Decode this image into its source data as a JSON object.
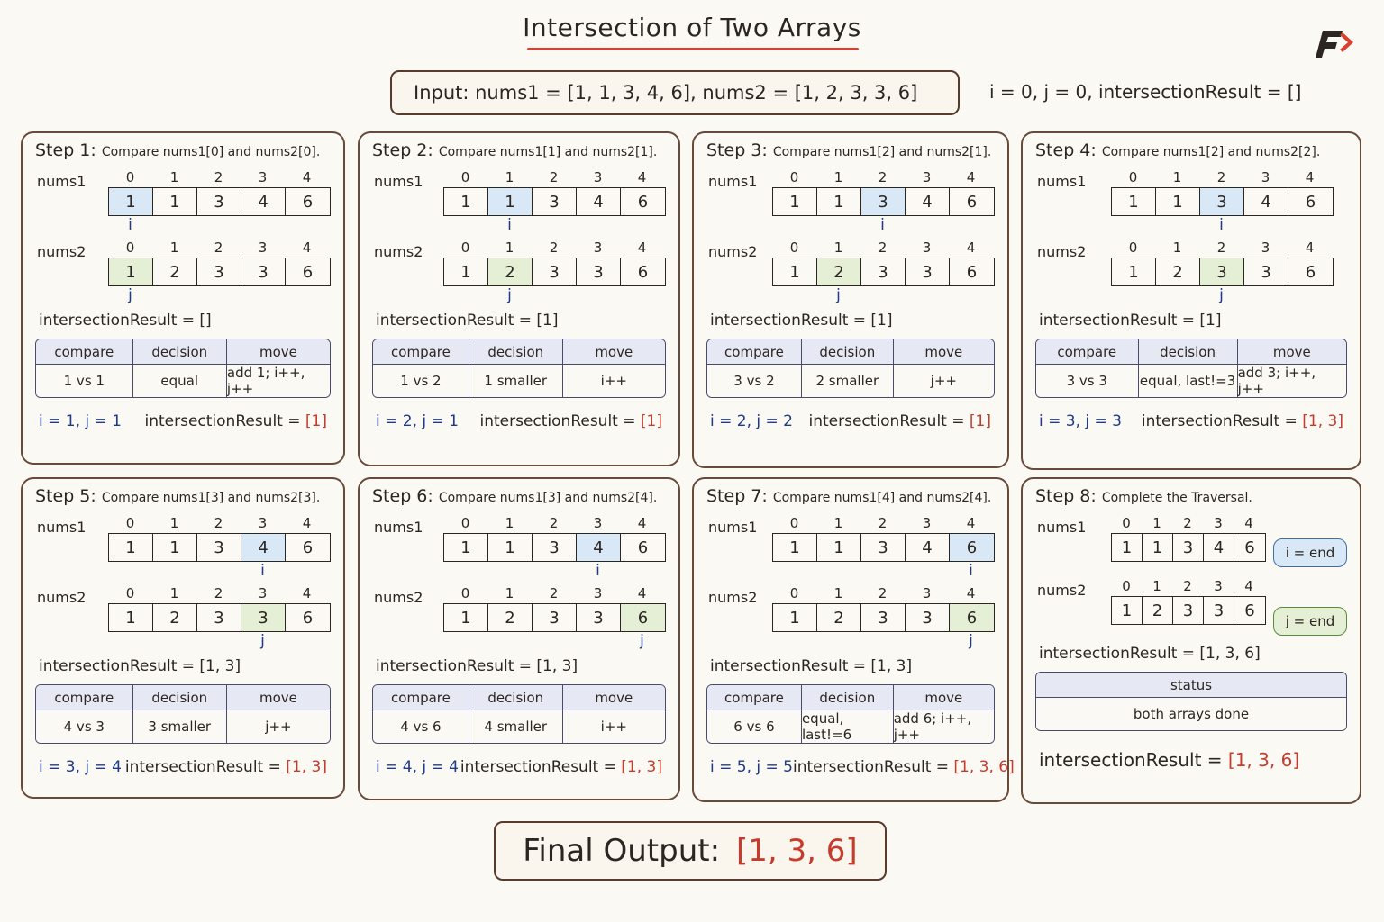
{
  "title": "Intersection of Two Arrays",
  "input_text": "Input: nums1 = [1, 1, 3, 4, 6], nums2 = [1, 2, 3, 3, 6]",
  "init_text": "i = 0, j = 0, intersectionResult = []",
  "indices": [
    "0",
    "1",
    "2",
    "3",
    "4"
  ],
  "nums1": [
    "1",
    "1",
    "3",
    "4",
    "6"
  ],
  "nums2": [
    "1",
    "2",
    "3",
    "3",
    "6"
  ],
  "labels": {
    "nums1": "nums1",
    "nums2": "nums2",
    "i": "i",
    "j": "j",
    "compare": "compare",
    "decision": "decision",
    "move": "move",
    "status": "status",
    "result_prefix": "intersectionResult = "
  },
  "steps": [
    {
      "title": "Step 1:",
      "subtitle": "Compare nums1[0] and nums2[0].",
      "i": 0,
      "j": 0,
      "result_before": "[]",
      "compare": "1 vs 1",
      "decision": "equal",
      "move": "add 1; i++, j++",
      "ij_after": "i = 1, j = 1",
      "result_after": "[1]"
    },
    {
      "title": "Step 2:",
      "subtitle": "Compare nums1[1] and nums2[1].",
      "i": 1,
      "j": 1,
      "result_before": "[1]",
      "compare": "1 vs 2",
      "decision": "1 smaller",
      "move": "i++",
      "ij_after": "i = 2, j = 1",
      "result_after": "[1]"
    },
    {
      "title": "Step 3:",
      "subtitle": "Compare nums1[2] and nums2[1].",
      "i": 2,
      "j": 1,
      "result_before": "[1]",
      "compare": "3 vs 2",
      "decision": "2 smaller",
      "move": "j++",
      "ij_after": "i = 2, j = 2",
      "result_after": "[1]"
    },
    {
      "title": "Step 4:",
      "subtitle": "Compare nums1[2] and nums2[2].",
      "i": 2,
      "j": 2,
      "result_before": "[1]",
      "compare": "3 vs 3",
      "decision": "equal, last!=3",
      "move": "add 3; i++, j++",
      "ij_after": "i = 3, j = 3",
      "result_after": "[1, 3]"
    },
    {
      "title": "Step 5:",
      "subtitle": "Compare nums1[3] and nums2[3].",
      "i": 3,
      "j": 3,
      "result_before": "[1, 3]",
      "compare": "4 vs 3",
      "decision": "3 smaller",
      "move": "j++",
      "ij_after": "i = 3, j = 4",
      "result_after": "[1, 3]"
    },
    {
      "title": "Step 6:",
      "subtitle": "Compare nums1[3] and nums2[4].",
      "i": 3,
      "j": 4,
      "result_before": "[1, 3]",
      "compare": "4 vs 6",
      "decision": "4 smaller",
      "move": "i++",
      "ij_after": "i = 4, j = 4",
      "result_after": "[1, 3]"
    },
    {
      "title": "Step 7:",
      "subtitle": "Compare nums1[4] and nums2[4].",
      "i": 4,
      "j": 4,
      "result_before": "[1, 3]",
      "compare": "6 vs 6",
      "decision": "equal, last!=6",
      "move": "add 6; i++, j++",
      "ij_after": "i = 5, j = 5",
      "result_after": "[1, 3, 6]"
    }
  ],
  "step8": {
    "title": "Step 8:",
    "subtitle": "Complete the Traversal.",
    "i_end": "i = end",
    "j_end": "j = end",
    "result": "[1, 3, 6]",
    "status": "both arrays done",
    "result_final": "[1, 3, 6]"
  },
  "final": {
    "label": "Final Output:",
    "value": "[1, 3, 6]"
  },
  "colors": {
    "accent_red": "#c63c2c",
    "pointer_blue": "#1f3a8a",
    "cell_blue": "#d9e8f6",
    "cell_green": "#e4efd5"
  }
}
